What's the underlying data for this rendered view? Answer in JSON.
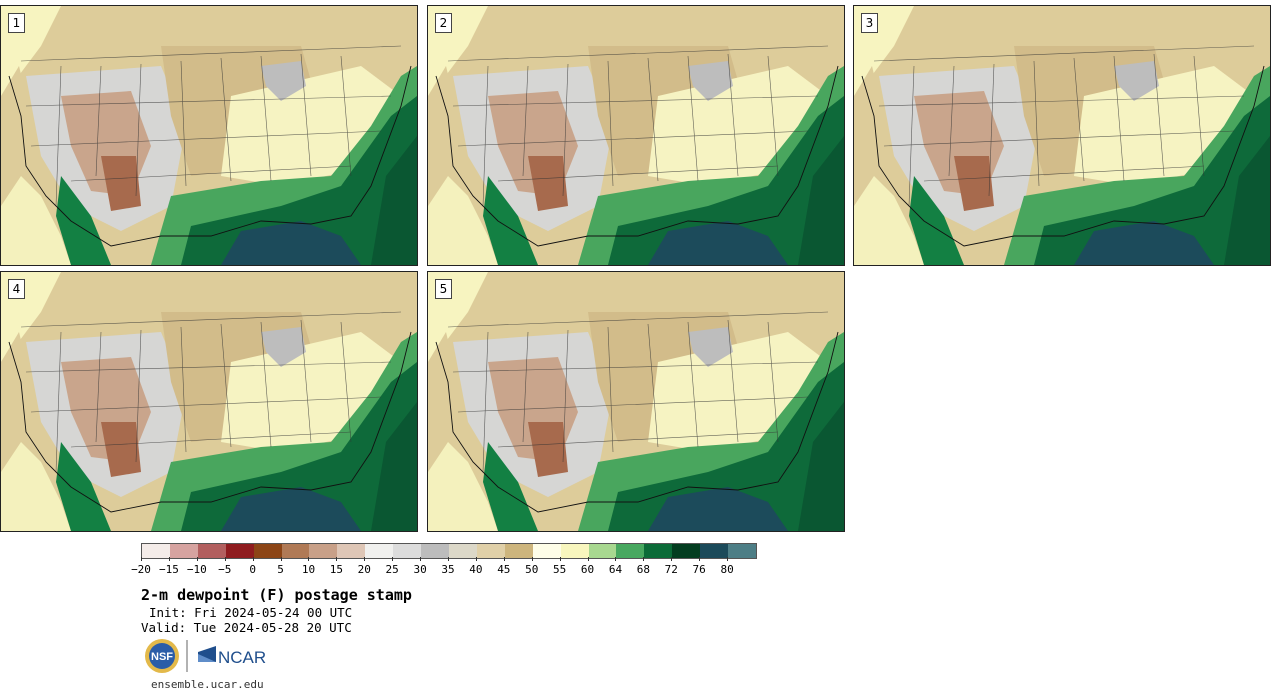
{
  "panels": [
    {
      "number": "1"
    },
    {
      "number": "2"
    },
    {
      "number": "3"
    },
    {
      "number": "4"
    },
    {
      "number": "5"
    }
  ],
  "colorbar": {
    "colors": [
      "#f4ece9",
      "#d6a3a0",
      "#b25f5f",
      "#8f1c1f",
      "#8c4516",
      "#b07a56",
      "#c8a088",
      "#dec6b6",
      "#f0f0ee",
      "#dcdcdc",
      "#bcbcbc",
      "#dcd8c8",
      "#e0d0a8",
      "#cdb57d",
      "#fefde8",
      "#f8f6be",
      "#a8d890",
      "#48a860",
      "#0b6b38",
      "#033d20",
      "#1b4a5a",
      "#4d7e86"
    ],
    "labels": [
      "−20",
      "−15",
      "−10",
      "−5",
      "0",
      "5",
      "10",
      "15",
      "20",
      "25",
      "30",
      "35",
      "40",
      "45",
      "50",
      "55",
      "60",
      "64",
      "68",
      "72",
      "76",
      "80"
    ]
  },
  "title": "2-m dewpoint (F) postage stamp",
  "init": "Init: Fri 2024-05-24 00 UTC",
  "valid": "Valid: Tue 2024-05-28 20 UTC",
  "logos": {
    "nsf": "NSF",
    "ncar": "NCAR"
  },
  "footer": "ensemble.ucar.edu"
}
